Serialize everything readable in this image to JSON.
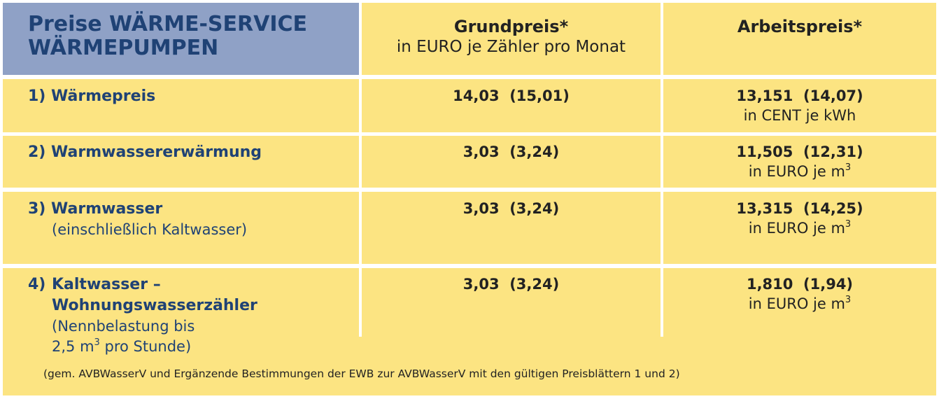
{
  "header": {
    "title_line1": "Preise WÄRME-SERVICE",
    "title_line2": "WÄRMEPUMPEN",
    "col1_title": "Grundpreis*",
    "col1_sub": "in EURO je Zähler pro Monat",
    "col2_title": "Arbeitspreis*"
  },
  "rows": [
    {
      "label": "1) Wärmepreis",
      "grund": "14,03  (15,01)",
      "arbeit": "13,151  (14,07)",
      "unit": "in CENT je kWh"
    },
    {
      "label": "2) Warmwassererwärmung",
      "grund": "3,03  (3,24)",
      "arbeit": "11,505  (12,31)",
      "unit": "in EURO je m",
      "unit_sup": "3"
    },
    {
      "label": "3) Warmwasser",
      "label_sub": "(einschließlich Kaltwasser)",
      "grund": "3,03  (3,24)",
      "arbeit": "13,315  (14,25)",
      "unit": "in EURO je m",
      "unit_sup": "3"
    },
    {
      "label_prefix": "4)",
      "label": "Kaltwasser –",
      "label2": "Wohnungswasserzähler",
      "label_sub": "(Nennbelastung bis",
      "label_sub2a": "2,5 m",
      "label_sub2_sup": "3",
      "label_sub2b": " pro Stunde)",
      "grund": "3,03  (3,24)",
      "arbeit": "1,810  (1,94)",
      "unit": "in EURO je m",
      "unit_sup": "3"
    }
  ],
  "footnote": "(gem. AVBWasserV und Ergänzende Bestimmungen der EWB zur AVBWasserV mit den gültigen Preisblättern 1 und 2)",
  "colors": {
    "yellow": "#fce482",
    "blue": "#8fa1c6",
    "title_blue": "#1f4275"
  }
}
